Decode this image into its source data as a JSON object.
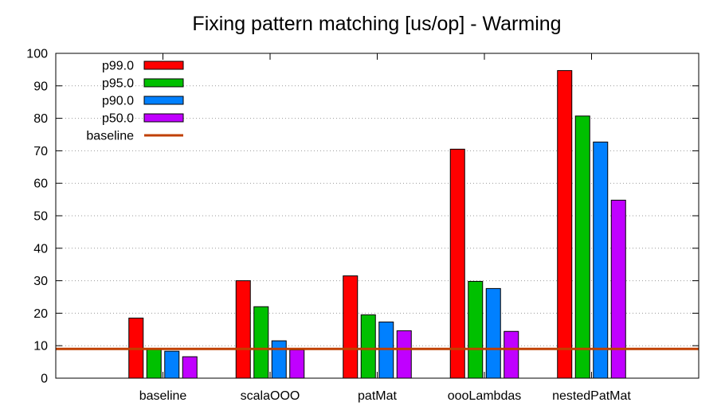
{
  "chart_data": {
    "type": "bar",
    "title": "Fixing pattern matching [us/op] - Warming",
    "xlabel": "",
    "ylabel": "",
    "ylim": [
      0,
      100
    ],
    "yticks": [
      0,
      10,
      20,
      30,
      40,
      50,
      60,
      70,
      80,
      90,
      100
    ],
    "categories": [
      "baseline",
      "scalaOOO",
      "patMat",
      "oooLambdas",
      "nestedPatMat"
    ],
    "series": [
      {
        "name": "p99.0",
        "color": "#ff0000",
        "values": [
          18.5,
          30.0,
          31.5,
          70.5,
          94.7
        ]
      },
      {
        "name": "p95.0",
        "color": "#00c000",
        "values": [
          9.0,
          22.0,
          19.5,
          29.8,
          80.7
        ]
      },
      {
        "name": "p90.0",
        "color": "#0080ff",
        "values": [
          8.3,
          11.5,
          17.3,
          27.6,
          72.7
        ]
      },
      {
        "name": "p50.0",
        "color": "#c000ff",
        "values": [
          6.6,
          8.7,
          14.6,
          14.4,
          54.8
        ]
      }
    ],
    "reference_line": {
      "name": "baseline",
      "value": 9.0,
      "color": "#c04000"
    },
    "legend_position": "top-left",
    "grid": "dotted y-gridlines"
  }
}
